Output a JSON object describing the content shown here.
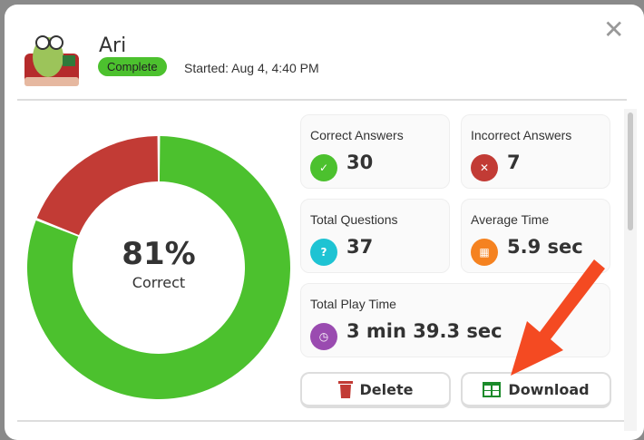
{
  "header": {
    "name": "Ari",
    "status": "Complete",
    "started": "Started: Aug 4, 4:40 PM",
    "close_icon": "close-icon"
  },
  "summary": {
    "percent": "81%",
    "percent_label": "Correct",
    "correct_fraction": 0.81
  },
  "stats": {
    "correct": {
      "label": "Correct Answers",
      "value": "30"
    },
    "incorrect": {
      "label": "Incorrect Answers",
      "value": "7"
    },
    "total": {
      "label": "Total Questions",
      "value": "37"
    },
    "avg": {
      "label": "Average Time",
      "value": "5.9 sec"
    },
    "play": {
      "label": "Total Play Time",
      "value": "3 min 39.3 sec"
    }
  },
  "buttons": {
    "delete": "Delete",
    "download": "Download"
  },
  "colors": {
    "green": "#4cc12e",
    "red": "#c23b35",
    "teal": "#1ec3d3",
    "orange": "#f58220",
    "purple": "#9a4bb0",
    "arrow": "#f44a22"
  }
}
